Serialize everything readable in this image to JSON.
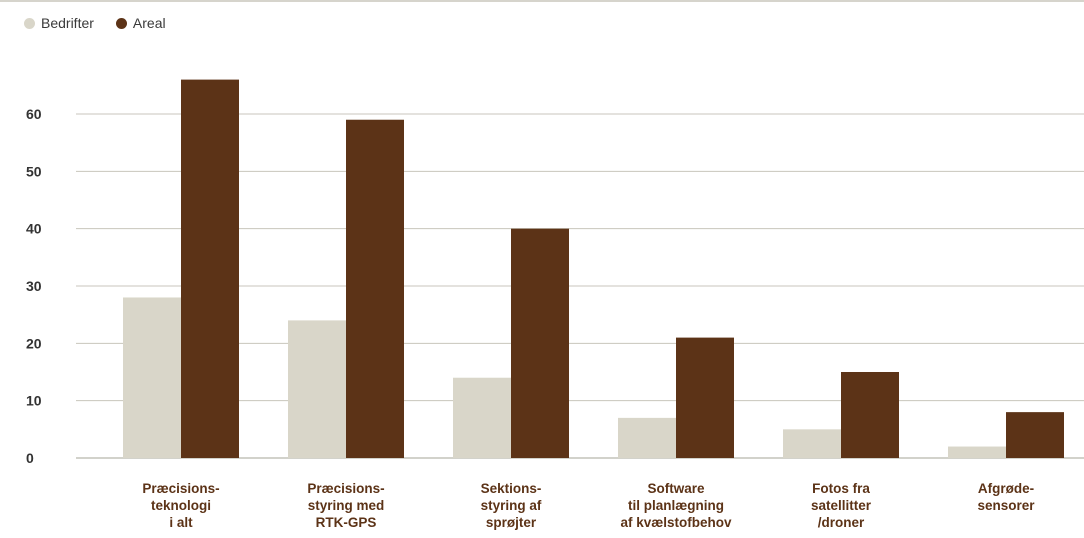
{
  "chart_data": {
    "type": "bar",
    "categories": [
      [
        "Præcisions-",
        "teknologi",
        "i alt"
      ],
      [
        "Præcisions-",
        "styring med",
        "RTK-GPS"
      ],
      [
        "Sektions-",
        "styring af",
        "sprøjter"
      ],
      [
        "Software",
        "til planlægning",
        "af kvælstofbehov"
      ],
      [
        "Fotos fra",
        "satellitter",
        "/droner"
      ],
      [
        "Afgrøde-",
        "sensorer"
      ]
    ],
    "series": [
      {
        "name": "Bedrifter",
        "color": "#d9d6c9",
        "values": [
          28,
          24,
          14,
          7,
          5,
          2
        ]
      },
      {
        "name": "Areal",
        "color": "#5c3317",
        "values": [
          66,
          59,
          40,
          21,
          15,
          8
        ]
      }
    ],
    "yticks": [
      0,
      10,
      20,
      30,
      40,
      50,
      60
    ],
    "ylim": [
      0,
      75
    ],
    "grid": true,
    "legend_position": "top-left"
  }
}
